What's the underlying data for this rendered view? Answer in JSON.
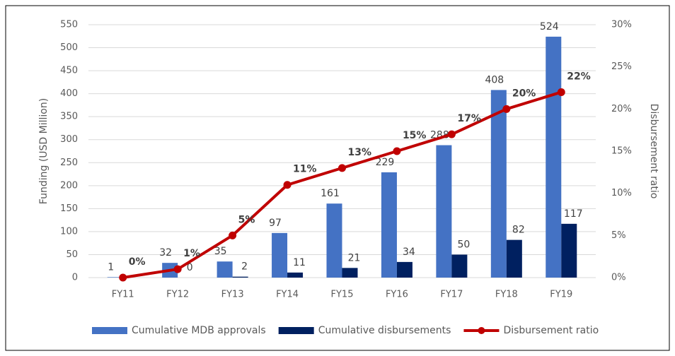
{
  "chart_data": {
    "type": "bar",
    "categories": [
      "FY11",
      "FY12",
      "FY13",
      "FY14",
      "FY15",
      "FY16",
      "FY17",
      "FY18",
      "FY19"
    ],
    "series": [
      {
        "name": "Cumulative MDB approvals",
        "color": "#4472c4",
        "values": [
          1,
          32,
          35,
          97,
          161,
          229,
          288,
          408,
          524
        ]
      },
      {
        "name": "Cumulative disbursements",
        "color": "#002060",
        "values": [
          null,
          0,
          2,
          11,
          21,
          34,
          50,
          82,
          117
        ]
      },
      {
        "name": "Disbursement ratio",
        "color": "#c00000",
        "type": "line",
        "axis": "y2",
        "values": [
          0,
          1,
          5,
          11,
          13,
          15,
          17,
          20,
          22
        ],
        "value_labels": [
          "0%",
          "1%",
          "5%",
          "11%",
          "13%",
          "15%",
          "17%",
          "20%",
          "22%"
        ]
      }
    ],
    "ylabel": "Funding (USD Million)",
    "y2label": "Disbursement ratio",
    "ylim": [
      0,
      550
    ],
    "yticks": [
      0,
      50,
      100,
      150,
      200,
      250,
      300,
      350,
      400,
      450,
      500,
      550
    ],
    "y2lim": [
      0,
      30
    ],
    "y2ticks": [
      {
        "value": 0,
        "label": "0%"
      },
      {
        "value": 5,
        "label": "5%"
      },
      {
        "value": 10,
        "label": "10%"
      },
      {
        "value": 15,
        "label": "15%"
      },
      {
        "value": 20,
        "label": "20%"
      },
      {
        "value": 25,
        "label": "25%"
      },
      {
        "value": 30,
        "label": "30%"
      }
    ],
    "grid": true,
    "legend": "bottom"
  }
}
